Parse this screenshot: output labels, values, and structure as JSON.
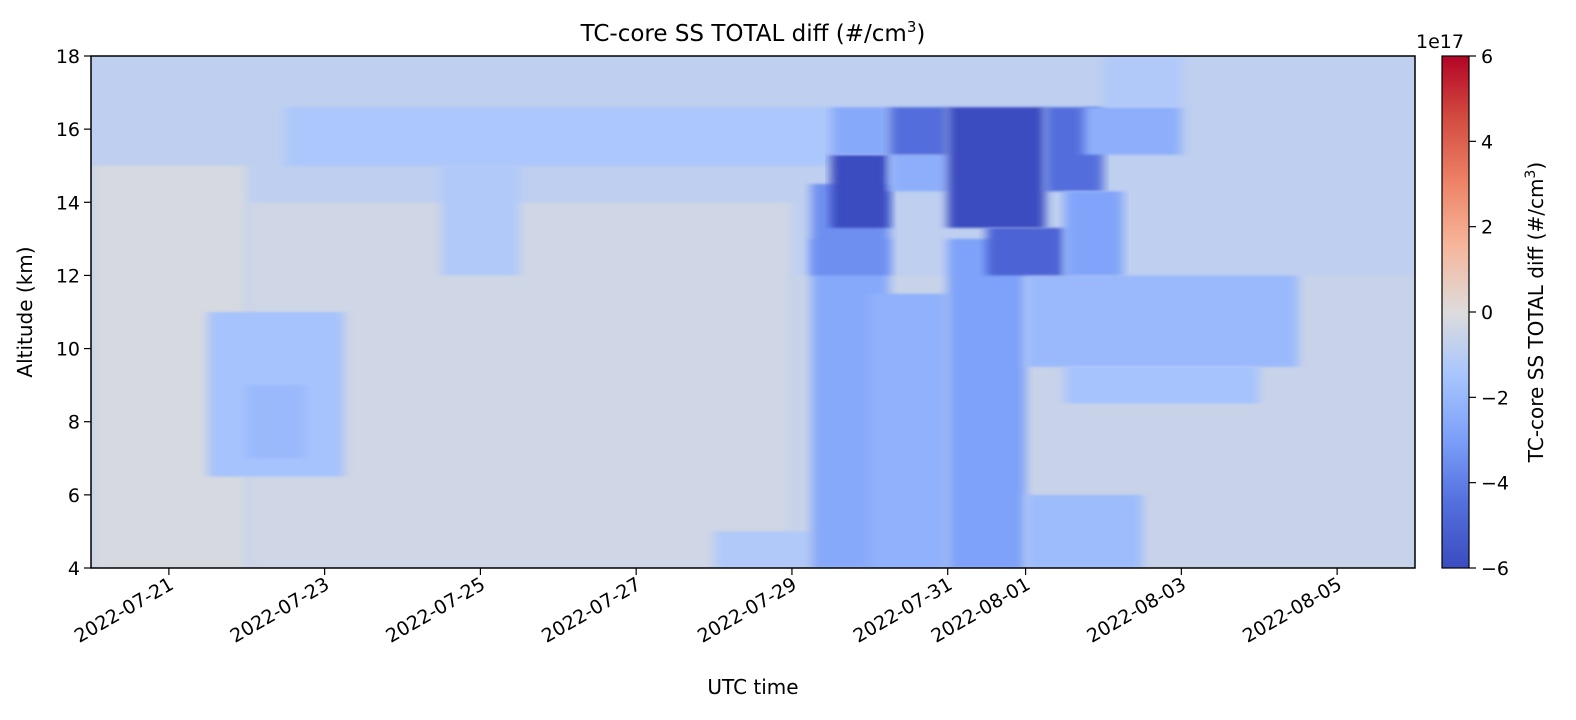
{
  "chart_data": {
    "type": "heatmap",
    "title_prefix": "TC-core SS TOTAL diff (#/cm",
    "title_sup": "3",
    "title_suffix": ")",
    "xlabel": "UTC time",
    "ylabel": "Altitude (km)",
    "xlim": [
      "2022-07-20",
      "2022-08-06"
    ],
    "ylim": [
      4,
      18
    ],
    "x_ticks": [
      "2022-07-21",
      "2022-07-23",
      "2022-07-25",
      "2022-07-27",
      "2022-07-29",
      "2022-07-31",
      "2022-08-01",
      "2022-08-03",
      "2022-08-05"
    ],
    "y_ticks": [
      4,
      6,
      8,
      10,
      12,
      14,
      16,
      18
    ],
    "altitude_levels_km": [
      4.5,
      5.5,
      6.5,
      7.5,
      8.5,
      9.5,
      10.5,
      11.5,
      12.5,
      13.5,
      14.5,
      15.5,
      16.5,
      17.5
    ],
    "colormap": "coolwarm",
    "colorbar": {
      "label_prefix": "TC-core SS TOTAL diff (#/cm",
      "label_sup": "3",
      "label_suffix": ")",
      "offset_text": "1e17",
      "ticks": [
        6,
        4,
        2,
        0,
        -2,
        -4,
        -6
      ],
      "tick_labels": [
        "6",
        "4",
        "2",
        "0",
        "−2",
        "−4",
        "−6"
      ],
      "vmin": -6,
      "vmax": 6
    },
    "features": [
      {
        "t0": "2022-07-20",
        "t1": "2022-08-06",
        "z0": 4,
        "z1": 18,
        "value": -0.9
      },
      {
        "t0": "2022-07-20",
        "t1": "2022-07-22",
        "z0": 4,
        "z1": 15,
        "value": -0.2
      },
      {
        "t0": "2022-07-22",
        "t1": "2022-07-29",
        "z0": 4,
        "z1": 14,
        "value": -0.4
      },
      {
        "t0": "2022-07-29",
        "t1": "2022-08-06",
        "z0": 4,
        "z1": 12,
        "value": -0.6
      },
      {
        "t0": "2022-07-21 12:00",
        "t1": "2022-07-23 06:00",
        "z0": 6.5,
        "z1": 11,
        "value": -1.6
      },
      {
        "t0": "2022-07-22 00:00",
        "t1": "2022-07-22 18:00",
        "z0": 7,
        "z1": 9,
        "value": -2.0
      },
      {
        "t0": "2022-07-22 12:00",
        "t1": "2022-07-29 12:00",
        "z0": 15,
        "z1": 16.6,
        "value": -1.4
      },
      {
        "t0": "2022-07-24 12:00",
        "t1": "2022-07-25 12:00",
        "z0": 12,
        "z1": 15,
        "value": -1.3
      },
      {
        "t0": "2022-07-28 00:00",
        "t1": "2022-07-29 06:00",
        "z0": 4,
        "z1": 5,
        "value": -1.3
      },
      {
        "t0": "2022-07-29 06:00",
        "t1": "2022-07-30 06:00",
        "z0": 4,
        "z1": 13,
        "value": -2.6
      },
      {
        "t0": "2022-07-30 00:00",
        "t1": "2022-07-31 00:00",
        "z0": 4,
        "z1": 11.5,
        "value": -2.3
      },
      {
        "t0": "2022-07-31 00:00",
        "t1": "2022-08-01 00:00",
        "z0": 4,
        "z1": 13,
        "value": -2.9
      },
      {
        "t0": "2022-08-01 00:00",
        "t1": "2022-08-02 12:00",
        "z0": 4,
        "z1": 6,
        "value": -1.9
      },
      {
        "t0": "2022-08-01 00:00",
        "t1": "2022-08-04 12:00",
        "z0": 9.5,
        "z1": 12,
        "value": -2.0
      },
      {
        "t0": "2022-08-01 12:00",
        "t1": "2022-08-04 00:00",
        "z0": 8.5,
        "z1": 9.5,
        "value": -1.6
      },
      {
        "t0": "2022-07-29 06:00",
        "t1": "2022-07-30 06:00",
        "z0": 12,
        "z1": 14.5,
        "value": -3.5
      },
      {
        "t0": "2022-07-29 12:00",
        "t1": "2022-07-30 06:00",
        "z0": 13.3,
        "z1": 15.3,
        "value": -6.0
      },
      {
        "t0": "2022-07-29 12:00",
        "t1": "2022-07-30 06:00",
        "z0": 15.3,
        "z1": 16.6,
        "value": -2.6
      },
      {
        "t0": "2022-07-30 06:00",
        "t1": "2022-07-31 00:00",
        "z0": 14.3,
        "z1": 15.3,
        "value": -2.4
      },
      {
        "t0": "2022-07-30 06:00",
        "t1": "2022-07-31 00:00",
        "z0": 15.3,
        "z1": 16.6,
        "value": -4.6
      },
      {
        "t0": "2022-07-31 00:00",
        "t1": "2022-08-01 06:00",
        "z0": 13.3,
        "z1": 16.6,
        "value": -6.0
      },
      {
        "t0": "2022-07-31 12:00",
        "t1": "2022-08-01 12:00",
        "z0": 12,
        "z1": 13.3,
        "value": -5.0
      },
      {
        "t0": "2022-08-01 06:00",
        "t1": "2022-08-02 00:00",
        "z0": 14.3,
        "z1": 16.6,
        "value": -4.6
      },
      {
        "t0": "2022-08-01 12:00",
        "t1": "2022-08-02 06:00",
        "z0": 12,
        "z1": 14.3,
        "value": -2.8
      },
      {
        "t0": "2022-08-01 18:00",
        "t1": "2022-08-03 00:00",
        "z0": 15.3,
        "z1": 16.6,
        "value": -2.4
      },
      {
        "t0": "2022-08-02 00:00",
        "t1": "2022-08-03 00:00",
        "z0": 16.6,
        "z1": 18,
        "value": -1.3
      }
    ]
  }
}
